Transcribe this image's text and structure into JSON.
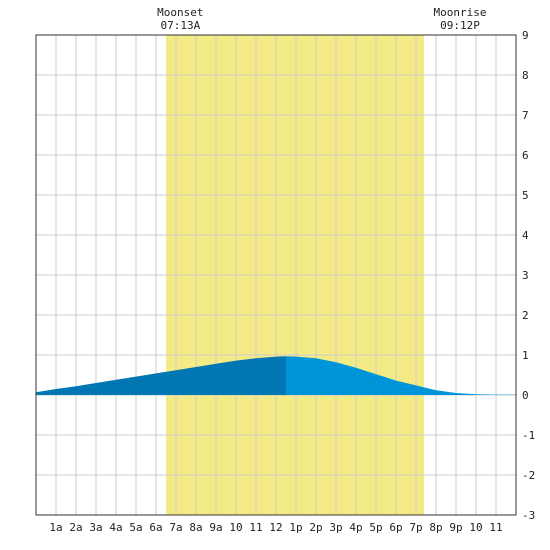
{
  "chart_data": {
    "type": "area",
    "title": "",
    "xlabel": "",
    "ylabel": "",
    "xlim": [
      0,
      24
    ],
    "ylim": [
      -3,
      9
    ],
    "grid": true,
    "x_tick_labels": [
      "1a",
      "2a",
      "3a",
      "4a",
      "5a",
      "6a",
      "7a",
      "8a",
      "9a",
      "10",
      "11",
      "12",
      "1p",
      "2p",
      "3p",
      "4p",
      "5p",
      "6p",
      "7p",
      "8p",
      "9p",
      "10",
      "11"
    ],
    "y_ticks": [
      -3,
      -2,
      -1,
      0,
      1,
      2,
      3,
      4,
      5,
      6,
      7,
      8,
      9
    ],
    "daylight_band": {
      "from_hour": 6.5,
      "to_hour": 19.4
    },
    "series": [
      {
        "x": [
          0,
          1,
          2,
          3,
          4,
          5,
          6,
          7,
          8,
          9,
          10,
          11,
          12,
          12.5,
          13,
          14,
          15,
          16,
          17,
          18,
          19,
          20,
          21,
          22,
          23,
          24
        ],
        "values": [
          0.07,
          0.15,
          0.22,
          0.3,
          0.38,
          0.46,
          0.54,
          0.62,
          0.7,
          0.78,
          0.86,
          0.92,
          0.96,
          0.97,
          0.96,
          0.92,
          0.82,
          0.68,
          0.52,
          0.36,
          0.24,
          0.12,
          0.05,
          0.02,
          0.01,
          0.01
        ]
      }
    ],
    "annotations": [
      {
        "label": "Moonset",
        "time": "07:13A",
        "hour": 7.217
      },
      {
        "label": "Moonrise",
        "time": "09:12P",
        "hour": 21.2
      }
    ]
  },
  "colors": {
    "daylight": "#f4ea86",
    "tide_rising": "#0077b3",
    "tide_falling": "#0095d8",
    "grid": "#cccccc",
    "axis": "#333333"
  }
}
